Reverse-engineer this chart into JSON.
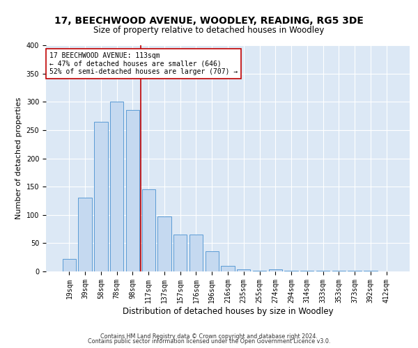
{
  "title1": "17, BEECHWOOD AVENUE, WOODLEY, READING, RG5 3DE",
  "title2": "Size of property relative to detached houses in Woodley",
  "xlabel": "Distribution of detached houses by size in Woodley",
  "ylabel": "Number of detached properties",
  "footer1": "Contains HM Land Registry data © Crown copyright and database right 2024.",
  "footer2": "Contains public sector information licensed under the Open Government Licence v3.0.",
  "annotation_line1": "17 BEECHWOOD AVENUE: 113sqm",
  "annotation_line2": "← 47% of detached houses are smaller (646)",
  "annotation_line3": "52% of semi-detached houses are larger (707) →",
  "bar_labels": [
    "19sqm",
    "39sqm",
    "58sqm",
    "78sqm",
    "98sqm",
    "117sqm",
    "137sqm",
    "157sqm",
    "176sqm",
    "196sqm",
    "216sqm",
    "235sqm",
    "255sqm",
    "274sqm",
    "294sqm",
    "314sqm",
    "333sqm",
    "353sqm",
    "373sqm",
    "392sqm",
    "412sqm"
  ],
  "bar_heights": [
    22,
    130,
    265,
    300,
    285,
    145,
    97,
    65,
    65,
    36,
    10,
    4,
    1,
    4,
    1,
    1,
    1,
    1,
    1,
    1,
    0
  ],
  "bar_color": "#c5d9f0",
  "bar_edge_color": "#5b9bd5",
  "vline_x": 4.5,
  "vline_color": "#c00000",
  "ylim": [
    0,
    400
  ],
  "yticks": [
    0,
    50,
    100,
    150,
    200,
    250,
    300,
    350,
    400
  ],
  "bg_color": "#dce8f5",
  "title1_fontsize": 10,
  "title2_fontsize": 8.5,
  "xlabel_fontsize": 8.5,
  "ylabel_fontsize": 8,
  "tick_fontsize": 7,
  "annot_fontsize": 7,
  "footer_fontsize": 5.8
}
